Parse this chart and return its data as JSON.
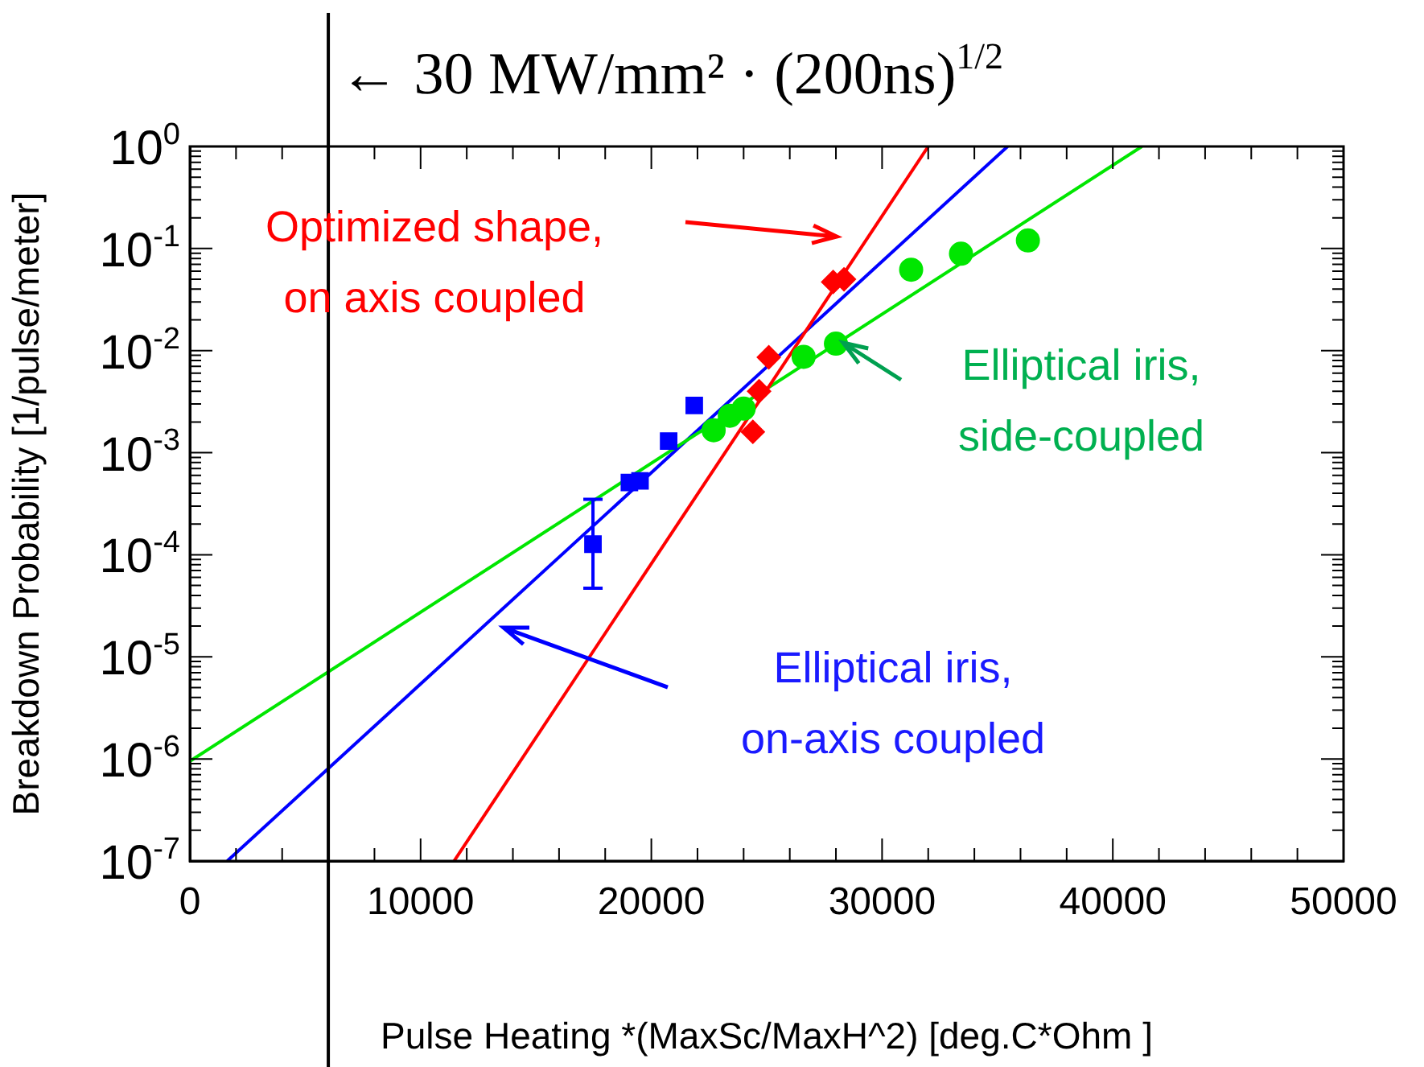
{
  "chart_data": {
    "type": "scatter",
    "xlabel": "Pulse Heating *(MaxSc/MaxH^2) [deg.C*Ohm ]",
    "ylabel": "Breakdown Probability [1/pulse/meter]",
    "log": "y",
    "grid": false,
    "legend": false,
    "xlim": [
      0,
      50000
    ],
    "xticks": [
      0,
      10000,
      20000,
      30000,
      40000,
      50000
    ],
    "ylim": [
      1e-07,
      1
    ],
    "yticks": [
      {
        "value": 1e-07,
        "label": "10$^{-7}$"
      },
      {
        "value": 1e-06,
        "label": "10$^{-6}$"
      },
      {
        "value": 1e-05,
        "label": "10$^{-5}$"
      },
      {
        "value": 0.0001,
        "label": "10$^{-4}$"
      },
      {
        "value": 0.001,
        "label": "10$^{-3}$"
      },
      {
        "value": 0.01,
        "label": "10$^{-2}$"
      },
      {
        "value": 0.1,
        "label": "10$^{-1}$"
      },
      {
        "value": 1,
        "label": "10$^{0}$"
      }
    ],
    "ref_lines": [
      {
        "axis": "x",
        "value": 6000,
        "label": "← 30 MW/mm² · (200ns)$^{1/2}$",
        "color": "#000000"
      }
    ],
    "series": [
      {
        "type": "scatter",
        "name": "Optimized shape, on axis coupled",
        "color": "#ff0000",
        "marker": "diamond",
        "x": [
          24400,
          24670,
          25090,
          27880,
          28350
        ],
        "values": [
          0.0016,
          0.004,
          0.0086,
          0.047,
          0.05
        ]
      },
      {
        "type": "scatter",
        "name": "Elliptical iris, side-coupled",
        "color": "#00e600",
        "marker": "circle",
        "x": [
          22700,
          23400,
          24000,
          26600,
          28000,
          31260,
          33420,
          36320
        ],
        "values": [
          0.00166,
          0.0023,
          0.0027,
          0.0087,
          0.0117,
          0.062,
          0.089,
          0.12
        ]
      },
      {
        "type": "scatter",
        "name": "Elliptical iris, on-axis coupled",
        "color": "#0000ff",
        "marker": "square",
        "x": [
          17470,
          19050,
          19510,
          20750,
          21860
        ],
        "values": [
          0.000127,
          0.00051,
          0.00053,
          0.0013,
          0.0029
        ],
        "errors": [
          [
            4.7e-05,
            0.00035
          ],
          null,
          null,
          null,
          null
        ]
      },
      {
        "type": "line",
        "color": "#ff0000",
        "marker": "none",
        "x": [
          11450,
          32000
        ],
        "values": [
          1e-07,
          1
        ]
      },
      {
        "type": "line",
        "color": "#00e600",
        "marker": "none",
        "x": [
          0,
          41260
        ],
        "values": [
          9.5e-07,
          1
        ]
      },
      {
        "type": "line",
        "color": "#0000ff",
        "marker": "none",
        "x": [
          1620,
          35440
        ],
        "values": [
          1e-07,
          1
        ]
      }
    ]
  }
}
